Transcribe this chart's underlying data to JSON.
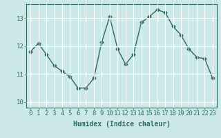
{
  "x": [
    0,
    1,
    2,
    3,
    4,
    5,
    6,
    7,
    8,
    9,
    10,
    11,
    12,
    13,
    14,
    15,
    16,
    17,
    18,
    19,
    20,
    21,
    22,
    23
  ],
  "y": [
    11.8,
    12.1,
    11.7,
    11.3,
    11.1,
    10.9,
    10.5,
    10.5,
    10.85,
    12.15,
    13.05,
    11.9,
    11.35,
    11.7,
    12.85,
    13.05,
    13.3,
    13.2,
    12.7,
    12.4,
    11.9,
    11.6,
    11.55,
    10.85
  ],
  "line_color": "#2e6b5e",
  "marker": "D",
  "markersize": 2.5,
  "linewidth": 1.0,
  "bg_color": "#cce8e8",
  "grid_color": "#ffffff",
  "xlabel": "Humidex (Indice chaleur)",
  "xlabel_fontsize": 7,
  "tick_fontsize": 6.5,
  "yticks": [
    10,
    11,
    12,
    13
  ],
  "xticks": [
    0,
    1,
    2,
    3,
    4,
    5,
    6,
    7,
    8,
    9,
    10,
    11,
    12,
    13,
    14,
    15,
    16,
    17,
    18,
    19,
    20,
    21,
    22,
    23
  ],
  "ylim": [
    9.8,
    13.5
  ],
  "xlim": [
    -0.5,
    23.5
  ]
}
